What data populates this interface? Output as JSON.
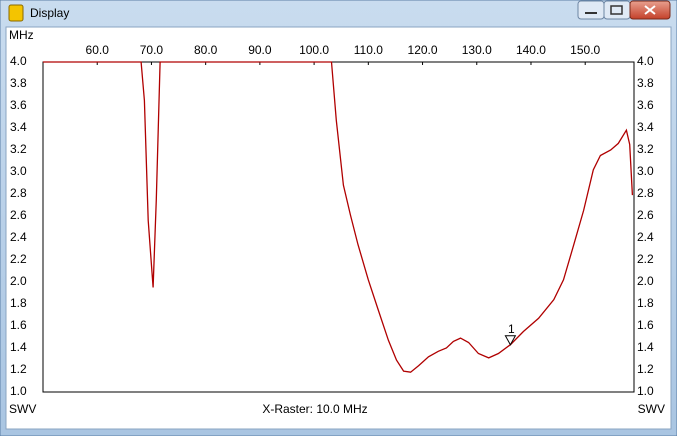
{
  "window": {
    "title": "Display"
  },
  "chart_data": {
    "type": "line",
    "x_label": "MHz",
    "y_label": "SWV",
    "annotation": "X-Raster: 10.0 MHz",
    "xlim": [
      50,
      159
    ],
    "xticks": [
      {
        "value": 60,
        "label": "60.0"
      },
      {
        "value": 70,
        "label": "70.0"
      },
      {
        "value": 80,
        "label": "80.0"
      },
      {
        "value": 90,
        "label": "90.0"
      },
      {
        "value": 100,
        "label": "100.0"
      },
      {
        "value": 110,
        "label": "110.0"
      },
      {
        "value": 120,
        "label": "120.0"
      },
      {
        "value": 130,
        "label": "130.0"
      },
      {
        "value": 140,
        "label": "140.0"
      },
      {
        "value": 150,
        "label": "150.0"
      }
    ],
    "ylim": [
      1,
      4
    ],
    "yticks": [
      {
        "value": 1,
        "label": "1.0"
      },
      {
        "value": 1.2,
        "label": "1.2"
      },
      {
        "value": 1.4,
        "label": "1.4"
      },
      {
        "value": 1.6,
        "label": "1.6"
      },
      {
        "value": 1.8,
        "label": "1.8"
      },
      {
        "value": 2,
        "label": "2.0"
      },
      {
        "value": 2.2,
        "label": "2.2"
      },
      {
        "value": 2.4,
        "label": "2.4"
      },
      {
        "value": 2.6,
        "label": "2.6"
      },
      {
        "value": 2.8,
        "label": "2.8"
      },
      {
        "value": 3,
        "label": "3.0"
      },
      {
        "value": 3.2,
        "label": "3.2"
      },
      {
        "value": 3.4,
        "label": "3.4"
      },
      {
        "value": 3.6,
        "label": "3.6"
      },
      {
        "value": 3.8,
        "label": "3.8"
      },
      {
        "value": 4,
        "label": "4.0"
      }
    ],
    "x": [
      50,
      68.1,
      68.7,
      69.4,
      70.3,
      70.9,
      71.6,
      103.2,
      104.1,
      105.4,
      106.7,
      108.1,
      110.0,
      111.8,
      113.7,
      115.2,
      116.5,
      117.8,
      119.3,
      121.1,
      122.9,
      124.4,
      125.7,
      127.0,
      128.5,
      130.3,
      132.2,
      134.0,
      136.2,
      138.6,
      141.4,
      144.2,
      146.0,
      147.9,
      149.7,
      151.5,
      152.8,
      154.7,
      156.1,
      157.6,
      158.2,
      158.7
    ],
    "series": [
      {
        "name": "SWV",
        "color": "#b00000",
        "values": [
          4.0,
          4.0,
          3.65,
          2.56,
          1.95,
          2.75,
          4.0,
          4.0,
          3.47,
          2.88,
          2.61,
          2.34,
          2.02,
          1.75,
          1.47,
          1.29,
          1.19,
          1.18,
          1.24,
          1.32,
          1.37,
          1.4,
          1.46,
          1.49,
          1.45,
          1.35,
          1.31,
          1.35,
          1.43,
          1.55,
          1.67,
          1.84,
          2.02,
          2.34,
          2.65,
          3.02,
          3.15,
          3.2,
          3.26,
          3.38,
          3.25,
          2.79
        ]
      }
    ],
    "marker": {
      "label": "1",
      "x": 136.2,
      "y": 1.43
    }
  }
}
